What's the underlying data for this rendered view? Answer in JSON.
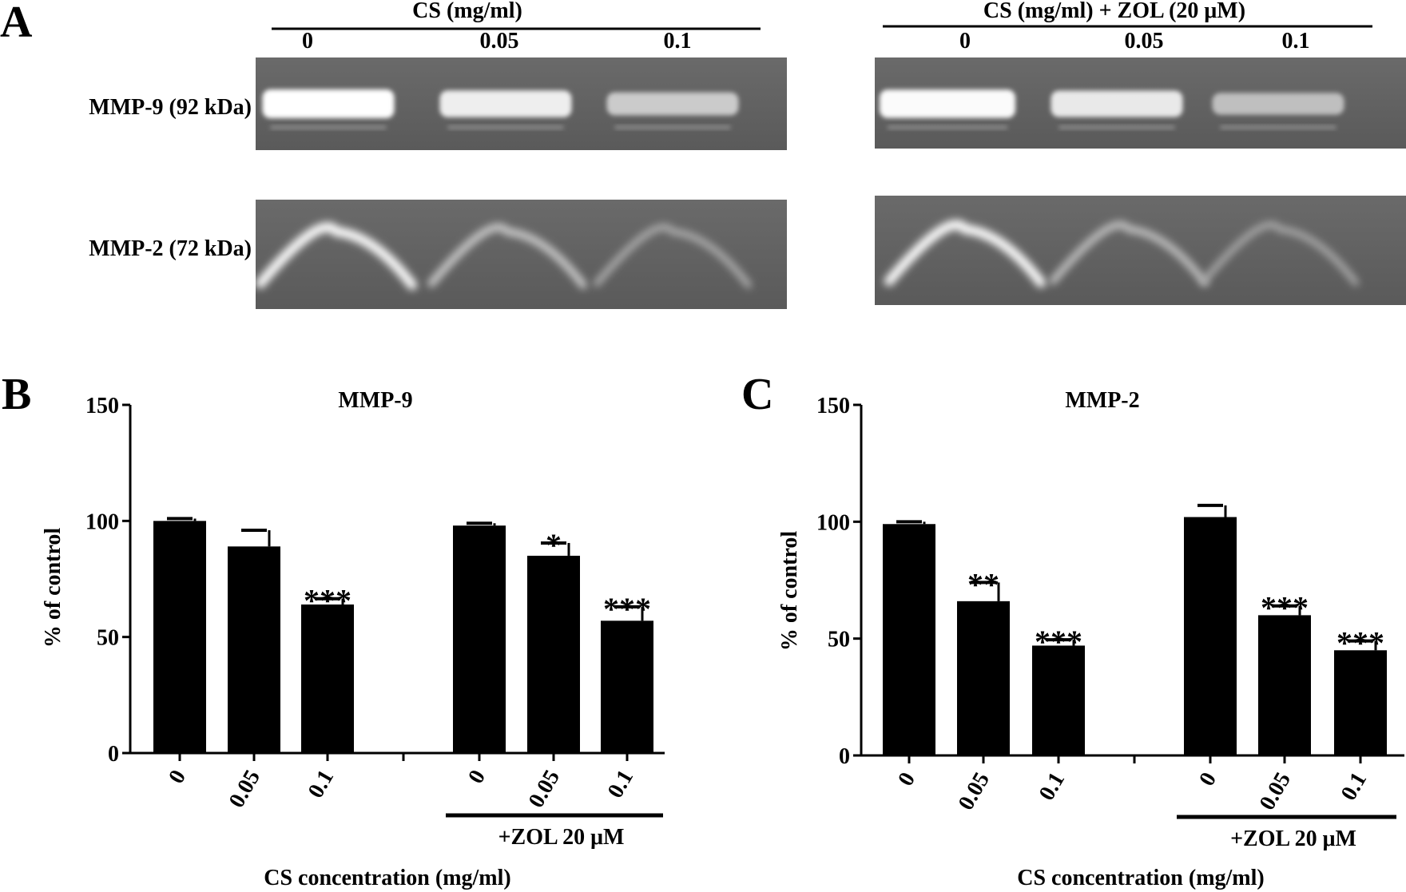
{
  "panel_a": {
    "label": "A",
    "group1_title": "CS (mg/ml)",
    "group2_title": "CS (mg/ml) + ZOL (20 μM)",
    "lane_labels": [
      "0",
      "0.05",
      "0.1"
    ],
    "row_labels": [
      "MMP-9 (92 kDa)",
      "MMP-2 (72 kDa)"
    ],
    "band_intensity": {
      "mmp9_cs": [
        1.0,
        0.88,
        0.64
      ],
      "mmp9_cs_zol": [
        0.97,
        0.85,
        0.56
      ],
      "mmp2_cs": [
        1.0,
        0.66,
        0.47
      ],
      "mmp2_cs_zol": [
        1.0,
        0.6,
        0.45
      ]
    }
  },
  "chart_data": [
    {
      "type": "bar",
      "panel": "B",
      "title": "MMP-9",
      "xlabel": "CS concentration (mg/ml)",
      "ylabel": "% of control",
      "ylim": [
        0,
        150
      ],
      "yticks": [
        "0",
        "50",
        "100",
        "150"
      ],
      "categories": [
        "0",
        "0.05",
        "0.1",
        "0",
        "0.05",
        "0.1"
      ],
      "values": [
        100,
        89,
        64,
        98,
        85,
        57
      ],
      "errors": [
        1,
        7,
        2.5,
        1,
        5.5,
        6
      ],
      "significance": [
        "",
        "",
        "***",
        "",
        "*",
        "***"
      ],
      "group_label": "+ZOL 20 μM",
      "group_range": [
        3,
        5
      ],
      "grid": false,
      "color": "#000000"
    },
    {
      "type": "bar",
      "panel": "C",
      "title": "MMP-2",
      "xlabel": "CS concentration (mg/ml)",
      "ylabel": "% of control",
      "ylim": [
        0,
        150
      ],
      "yticks": [
        "0",
        "50",
        "100",
        "150"
      ],
      "categories": [
        "0",
        "0.05",
        "0.1",
        "0",
        "0.05",
        "0.1"
      ],
      "values": [
        99,
        66,
        47,
        102,
        60,
        45
      ],
      "errors": [
        1,
        8,
        2.5,
        5,
        4,
        4
      ],
      "significance": [
        "",
        "**",
        "***",
        "",
        "***",
        "***"
      ],
      "group_label": "+ZOL 20 μM",
      "group_range": [
        3,
        5
      ],
      "grid": false,
      "color": "#000000"
    }
  ]
}
